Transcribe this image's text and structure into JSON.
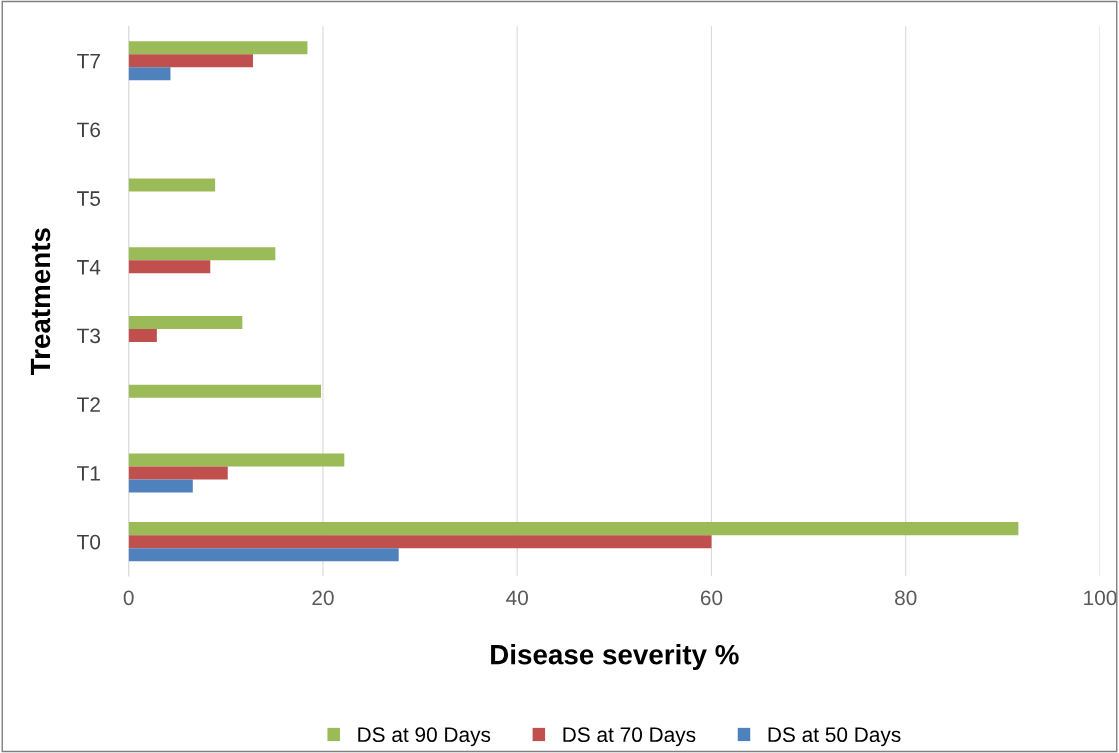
{
  "chart_data": {
    "type": "bar",
    "orientation": "horizontal",
    "xlabel": "Disease severity %",
    "ylabel": "Treatments",
    "categories": [
      "T7",
      "T6",
      "T5",
      "T4",
      "T3",
      "T2",
      "T1",
      "T0"
    ],
    "series": [
      {
        "name": "DS at 90 Days",
        "color": "#9bbb59",
        "values": [
          18.4,
          0,
          8.9,
          15.1,
          11.7,
          19.8,
          22.2,
          91.6
        ]
      },
      {
        "name": "DS at 70 Days",
        "color": "#c0504d",
        "values": [
          12.8,
          0,
          0,
          8.4,
          2.9,
          0,
          10.2,
          60
        ]
      },
      {
        "name": "DS at 50 Days",
        "color": "#4f81bd",
        "values": [
          4.3,
          0,
          0,
          0,
          0,
          0,
          6.6,
          27.8
        ]
      }
    ],
    "xlim": [
      0,
      100
    ],
    "xticks": [
      0,
      20,
      40,
      60,
      80,
      100
    ],
    "grid": "x",
    "legend": "bottom"
  }
}
